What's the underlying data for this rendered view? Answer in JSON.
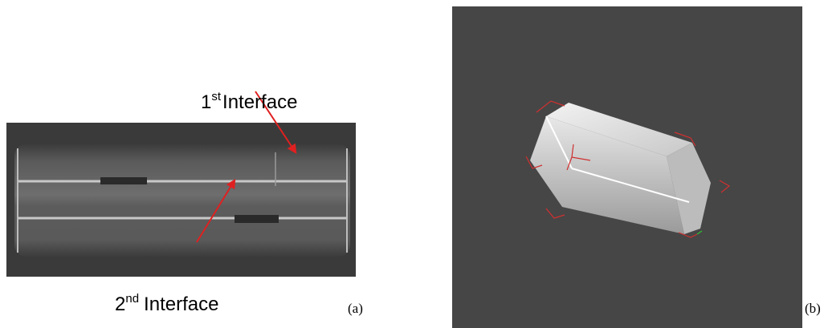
{
  "panels": [
    {
      "label": "(a)",
      "annotations": [
        {
          "number": "1",
          "suffix": "st",
          "text": "Interface"
        },
        {
          "number": "2",
          "suffix": "nd",
          "text": "Interface"
        }
      ]
    },
    {
      "label": "(b)"
    }
  ]
}
